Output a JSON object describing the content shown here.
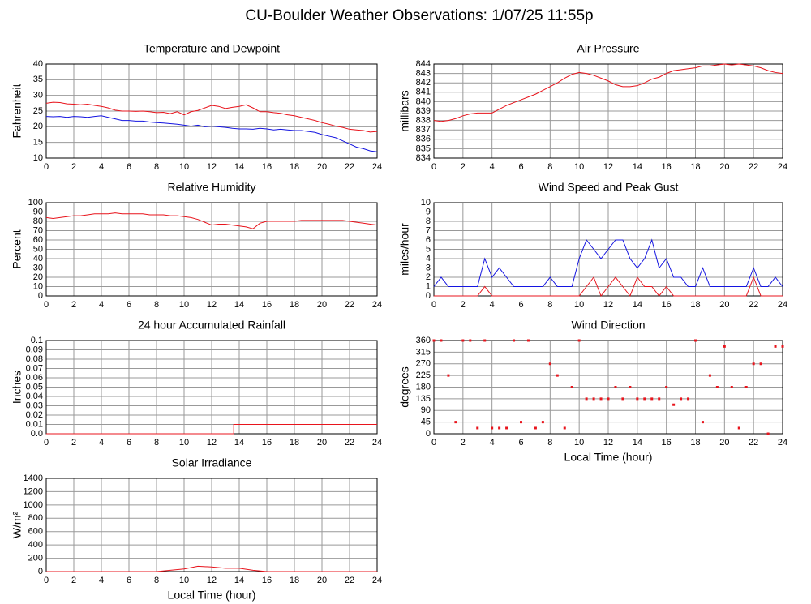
{
  "title": "CU-Boulder Weather Observations: 1/07/25 11:55p",
  "chart_data": [
    {
      "type": "line",
      "title": "Temperature and Dewpoint",
      "ylabel": "Fahrenheit",
      "x": [
        0,
        0.5,
        1,
        1.5,
        2,
        2.5,
        3,
        3.5,
        4,
        4.5,
        5,
        5.5,
        6,
        6.5,
        7,
        7.5,
        8,
        8.5,
        9,
        9.5,
        10,
        10.5,
        11,
        11.5,
        12,
        12.5,
        13,
        13.5,
        14,
        14.5,
        15,
        15.5,
        16,
        16.5,
        17,
        17.5,
        18,
        18.5,
        19,
        19.5,
        20,
        20.5,
        21,
        21.5,
        22,
        22.5,
        23,
        23.5,
        24
      ],
      "series": [
        {
          "color": "#e8141c",
          "values": [
            27.5,
            27.8,
            27.7,
            27.3,
            27.2,
            27.0,
            27.2,
            26.8,
            26.5,
            26.0,
            25.3,
            25.0,
            25.0,
            24.9,
            25.0,
            24.8,
            24.5,
            24.6,
            24.2,
            24.8,
            23.8,
            24.8,
            25.2,
            26.0,
            26.8,
            26.5,
            25.8,
            26.2,
            26.5,
            27.0,
            26.0,
            24.8,
            24.8,
            24.5,
            24.3,
            23.8,
            23.5,
            23.0,
            22.5,
            22.0,
            21.3,
            20.8,
            20.2,
            19.8,
            19.2,
            19.0,
            18.8,
            18.3,
            18.5
          ]
        },
        {
          "color": "#1414e0",
          "values": [
            23.3,
            23.2,
            23.3,
            23.0,
            23.3,
            23.2,
            23.0,
            23.3,
            23.5,
            23.0,
            22.5,
            22.0,
            22.0,
            21.8,
            21.8,
            21.5,
            21.3,
            21.2,
            21.0,
            20.8,
            20.5,
            20.2,
            20.5,
            20.0,
            20.2,
            20.0,
            19.8,
            19.5,
            19.3,
            19.3,
            19.2,
            19.5,
            19.3,
            19.0,
            19.2,
            19.0,
            18.8,
            18.8,
            18.5,
            18.2,
            17.5,
            17.0,
            16.5,
            15.5,
            14.5,
            13.5,
            13.0,
            12.3,
            12.0
          ]
        }
      ],
      "xlim": [
        0,
        24
      ],
      "ylim": [
        10,
        40
      ],
      "xticks": [
        0,
        2,
        4,
        6,
        8,
        10,
        12,
        14,
        16,
        18,
        20,
        22,
        24
      ],
      "yticks": [
        10,
        15,
        20,
        25,
        30,
        35,
        40
      ],
      "grid": true
    },
    {
      "type": "line",
      "title": "Air Pressure",
      "ylabel": "millibars",
      "x": [
        0,
        0.5,
        1,
        1.5,
        2,
        2.5,
        3,
        3.5,
        4,
        4.5,
        5,
        5.5,
        6,
        6.5,
        7,
        7.5,
        8,
        8.5,
        9,
        9.5,
        10,
        10.5,
        11,
        11.5,
        12,
        12.5,
        13,
        13.5,
        14,
        14.5,
        15,
        15.5,
        16,
        16.5,
        17,
        17.5,
        18,
        18.5,
        19,
        19.5,
        20,
        20.5,
        21,
        21.5,
        22,
        22.5,
        23,
        23.5,
        24
      ],
      "series": [
        {
          "color": "#e8141c",
          "values": [
            838.0,
            837.9,
            838.0,
            838.2,
            838.5,
            838.7,
            838.8,
            838.8,
            838.8,
            839.2,
            839.6,
            839.9,
            840.2,
            840.5,
            840.8,
            841.2,
            841.6,
            842.0,
            842.5,
            842.9,
            843.1,
            843.0,
            842.8,
            842.5,
            842.2,
            841.8,
            841.6,
            841.6,
            841.7,
            842.0,
            842.4,
            842.6,
            843.0,
            843.3,
            843.4,
            843.5,
            843.6,
            843.8,
            843.8,
            843.9,
            844.0,
            843.9,
            844.0,
            843.9,
            843.8,
            843.6,
            843.3,
            843.1,
            843.0
          ]
        }
      ],
      "xlim": [
        0,
        24
      ],
      "ylim": [
        834,
        844
      ],
      "xticks": [
        0,
        2,
        4,
        6,
        8,
        10,
        12,
        14,
        16,
        18,
        20,
        22,
        24
      ],
      "yticks": [
        834,
        835,
        836,
        837,
        838,
        839,
        840,
        841,
        842,
        843,
        844
      ],
      "grid": true
    },
    {
      "type": "line",
      "title": "Relative Humidity",
      "ylabel": "Percent",
      "x": [
        0,
        0.5,
        1,
        1.5,
        2,
        2.5,
        3,
        3.5,
        4,
        4.5,
        5,
        5.5,
        6,
        6.5,
        7,
        7.5,
        8,
        8.5,
        9,
        9.5,
        10,
        10.5,
        11,
        11.5,
        12,
        12.5,
        13,
        13.5,
        14,
        14.5,
        15,
        15.5,
        16,
        16.5,
        17,
        17.5,
        18,
        18.5,
        19,
        19.5,
        20,
        20.5,
        21,
        21.5,
        22,
        22.5,
        23,
        23.5,
        24
      ],
      "series": [
        {
          "color": "#e8141c",
          "values": [
            84,
            83,
            84,
            85,
            86,
            86,
            87,
            88,
            88,
            88,
            89,
            88,
            88,
            88,
            88,
            87,
            87,
            87,
            86,
            86,
            85,
            84,
            82,
            79,
            76,
            77,
            77,
            76,
            75,
            74,
            72,
            78,
            80,
            80,
            80,
            80,
            80,
            81,
            81,
            81,
            81,
            81,
            81,
            81,
            80,
            79,
            78,
            77,
            76
          ]
        }
      ],
      "xlim": [
        0,
        24
      ],
      "ylim": [
        0,
        100
      ],
      "xticks": [
        0,
        2,
        4,
        6,
        8,
        10,
        12,
        14,
        16,
        18,
        20,
        22,
        24
      ],
      "yticks": [
        0,
        10,
        20,
        30,
        40,
        50,
        60,
        70,
        80,
        90,
        100
      ],
      "grid": true
    },
    {
      "type": "line",
      "title": "Wind Speed and Peak Gust",
      "ylabel": "miles/hour",
      "x": [
        0,
        0.5,
        1,
        1.5,
        2,
        2.5,
        3,
        3.5,
        4,
        4.5,
        5,
        5.5,
        6,
        6.5,
        7,
        7.5,
        8,
        8.5,
        9,
        9.5,
        10,
        10.5,
        11,
        11.5,
        12,
        12.5,
        13,
        13.5,
        14,
        14.5,
        15,
        15.5,
        16,
        16.5,
        17,
        17.5,
        18,
        18.5,
        19,
        19.5,
        20,
        20.5,
        21,
        21.5,
        22,
        22.5,
        23,
        23.5,
        24
      ],
      "series": [
        {
          "color": "#1414e0",
          "values": [
            1,
            2,
            1,
            1,
            1,
            1,
            1,
            4,
            2,
            3,
            2,
            1,
            1,
            1,
            1,
            1,
            2,
            1,
            1,
            1,
            4,
            6,
            5,
            4,
            5,
            6,
            6,
            4,
            3,
            4,
            6,
            3,
            4,
            2,
            2,
            1,
            1,
            3,
            1,
            1,
            1,
            1,
            1,
            1,
            3,
            1,
            1,
            2,
            1
          ]
        },
        {
          "color": "#e8141c",
          "values": [
            0,
            0,
            0,
            0,
            0,
            0,
            0,
            1,
            0,
            0,
            0,
            0,
            0,
            0,
            0,
            0,
            0,
            0,
            0,
            0,
            0,
            1,
            2,
            0,
            1,
            2,
            1,
            0,
            2,
            1,
            1,
            0,
            1,
            0,
            0,
            0,
            0,
            0,
            0,
            0,
            0,
            0,
            0,
            0,
            2,
            0,
            0,
            0,
            0
          ]
        }
      ],
      "xlim": [
        0,
        24
      ],
      "ylim": [
        0,
        10
      ],
      "xticks": [
        0,
        2,
        4,
        6,
        8,
        10,
        12,
        14,
        16,
        18,
        20,
        22,
        24
      ],
      "yticks": [
        0,
        1,
        2,
        3,
        4,
        5,
        6,
        7,
        8,
        9,
        10
      ],
      "grid": true
    },
    {
      "type": "line",
      "title": "24 hour Accumulated Rainfall",
      "ylabel": "Inches",
      "x": [
        0,
        13.6,
        13.6,
        24
      ],
      "series": [
        {
          "color": "#e8141c",
          "values": [
            0,
            0,
            0.01,
            0.01
          ]
        }
      ],
      "xlim": [
        0,
        24
      ],
      "ylim": [
        0,
        0.1
      ],
      "xticks": [
        0,
        2,
        4,
        6,
        8,
        10,
        12,
        14,
        16,
        18,
        20,
        22,
        24
      ],
      "yticks": [
        {
          "value": 0,
          "label": "0.0"
        },
        0.01,
        0.02,
        0.03,
        0.04,
        0.05,
        0.06,
        0.07,
        0.08,
        0.09,
        {
          "value": 0.1,
          "label": "0.1"
        }
      ],
      "grid": true
    },
    {
      "type": "scatter",
      "title": "Wind Direction",
      "ylabel": "degrees",
      "xlabel": "Local Time (hour)",
      "x": [
        0,
        0.5,
        1,
        1.5,
        2,
        2.5,
        3,
        3.5,
        4,
        4.5,
        5,
        5.5,
        6,
        6.5,
        7,
        7.5,
        8,
        8.5,
        9,
        9.5,
        10,
        10.5,
        11,
        11.5,
        12,
        12.5,
        13,
        13.5,
        14,
        14.5,
        15,
        15.5,
        16,
        16.5,
        17,
        17.5,
        18,
        18.5,
        19,
        19.5,
        20,
        20.5,
        21,
        21.5,
        22,
        22.5,
        23,
        23.5,
        24
      ],
      "series": [
        {
          "color": "#e8141c",
          "values": [
            360,
            360,
            225,
            45,
            360,
            360,
            22,
            360,
            22,
            22,
            22,
            360,
            45,
            360,
            22,
            45,
            270,
            225,
            22,
            180,
            360,
            135,
            135,
            135,
            135,
            180,
            135,
            180,
            135,
            135,
            135,
            135,
            180,
            112,
            135,
            135,
            360,
            45,
            225,
            180,
            337,
            180,
            22,
            180,
            270,
            270,
            0,
            337,
            337
          ]
        }
      ],
      "xlim": [
        0,
        24
      ],
      "ylim": [
        0,
        360
      ],
      "xticks": [
        0,
        2,
        4,
        6,
        8,
        10,
        12,
        14,
        16,
        18,
        20,
        22,
        24
      ],
      "yticks": [
        0,
        45,
        90,
        135,
        180,
        225,
        270,
        315,
        360
      ],
      "grid": true
    },
    {
      "type": "line",
      "title": "Solar Irradiance",
      "ylabel": "W/m²",
      "xlabel": "Local Time (hour)",
      "x": [
        0,
        1,
        2,
        3,
        4,
        5,
        6,
        7,
        8,
        9,
        10,
        11,
        12,
        13,
        14,
        15,
        16,
        17,
        18,
        19,
        20,
        21,
        22,
        23,
        24
      ],
      "series": [
        {
          "color": "#e8141c",
          "values": [
            0,
            0,
            0,
            0,
            0,
            0,
            0,
            0,
            0,
            20,
            40,
            80,
            70,
            50,
            50,
            20,
            0,
            0,
            0,
            0,
            0,
            0,
            0,
            0,
            0
          ]
        }
      ],
      "xlim": [
        0,
        24
      ],
      "ylim": [
        0,
        1400
      ],
      "xticks": [
        0,
        2,
        4,
        6,
        8,
        10,
        12,
        14,
        16,
        18,
        20,
        22,
        24
      ],
      "yticks": [
        0,
        200,
        400,
        600,
        800,
        1000,
        1200,
        1400
      ],
      "grid": true
    }
  ]
}
